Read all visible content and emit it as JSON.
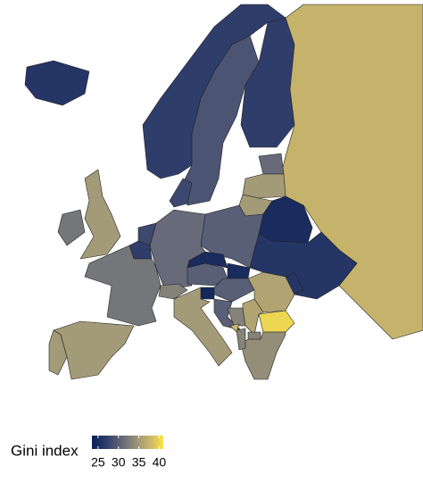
{
  "legend": {
    "title": "Gini index",
    "lim": [
      23.5,
      41
    ],
    "ticks": [
      25,
      30,
      35,
      40
    ],
    "colorscale": [
      {
        "value": 23.5,
        "color": "#0b2055"
      },
      {
        "value": 27,
        "color": "#2f3d6b"
      },
      {
        "value": 31,
        "color": "#666a79"
      },
      {
        "value": 35,
        "color": "#a39a78"
      },
      {
        "value": 38,
        "color": "#cdb868"
      },
      {
        "value": 41,
        "color": "#fde545"
      }
    ]
  },
  "regions": {
    "values": [
      26,
      27,
      29,
      27,
      37.5,
      31,
      35,
      35,
      25,
      26,
      30,
      31,
      28,
      28,
      27,
      32,
      35,
      32,
      35,
      35,
      33,
      30,
      25,
      25,
      24.5,
      30,
      35,
      30,
      33,
      36,
      36,
      40,
      34,
      26,
      33,
      33,
      38
    ]
  }
}
